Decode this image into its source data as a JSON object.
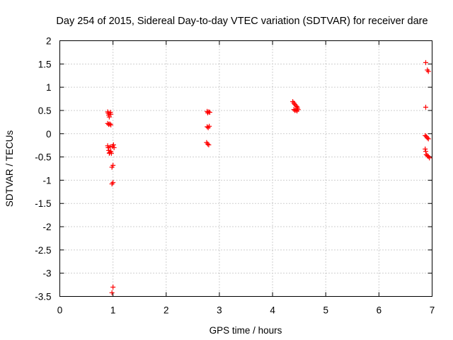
{
  "chart_data": {
    "type": "scatter",
    "title": "Day 254 of 2015, Sidereal Day-to-day VTEC variation (SDTVAR) for receiver dare",
    "xlabel": "GPS time / hours",
    "ylabel": "SDTVAR / TECUs",
    "xlim": [
      0,
      7
    ],
    "ylim": [
      -3.5,
      2
    ],
    "xticks": [
      "0",
      "1",
      "2",
      "3",
      "4",
      "5",
      "6",
      "7"
    ],
    "yticks": [
      "2",
      "1.5",
      "1",
      "0.5",
      "0",
      "-0.5",
      "-1",
      "-1.5",
      "-2",
      "-2.5",
      "-3",
      "-3.5"
    ],
    "grid": true,
    "marker": "plus",
    "color": "#ff0000",
    "series": [
      {
        "points": [
          [
            0.9,
            0.47
          ],
          [
            0.91,
            0.44
          ],
          [
            0.92,
            0.4
          ],
          [
            0.93,
            0.36
          ],
          [
            0.95,
            0.46
          ],
          [
            0.96,
            0.42
          ],
          [
            0.9,
            0.22
          ],
          [
            0.92,
            0.2
          ],
          [
            0.94,
            0.21
          ],
          [
            0.96,
            0.19
          ],
          [
            0.9,
            -0.26
          ],
          [
            0.91,
            -0.3
          ],
          [
            0.92,
            -0.36
          ],
          [
            0.93,
            -0.42
          ],
          [
            0.94,
            -0.4
          ],
          [
            0.95,
            -0.28
          ],
          [
            0.96,
            -0.38
          ],
          [
            0.97,
            -0.42
          ],
          [
            0.99,
            -0.27
          ],
          [
            1.01,
            -0.24
          ],
          [
            1.02,
            -0.3
          ],
          [
            0.98,
            -0.72
          ],
          [
            1.0,
            -0.68
          ],
          [
            0.98,
            -1.08
          ],
          [
            1.0,
            -1.05
          ],
          [
            0.98,
            -3.42
          ],
          [
            1.0,
            -3.3
          ],
          [
            2.77,
            0.48
          ],
          [
            2.78,
            0.45
          ],
          [
            2.8,
            0.47
          ],
          [
            2.82,
            0.46
          ],
          [
            2.77,
            0.15
          ],
          [
            2.79,
            0.13
          ],
          [
            2.81,
            0.16
          ],
          [
            2.76,
            -0.19
          ],
          [
            2.78,
            -0.22
          ],
          [
            2.8,
            -0.24
          ],
          [
            4.38,
            0.69
          ],
          [
            4.4,
            0.66
          ],
          [
            4.42,
            0.63
          ],
          [
            4.44,
            0.6
          ],
          [
            4.46,
            0.58
          ],
          [
            4.47,
            0.55
          ],
          [
            4.4,
            0.52
          ],
          [
            4.42,
            0.5
          ],
          [
            4.44,
            0.51
          ],
          [
            4.46,
            0.49
          ],
          [
            4.48,
            0.52
          ],
          [
            6.88,
            1.53
          ],
          [
            6.91,
            1.37
          ],
          [
            6.93,
            1.34
          ],
          [
            6.88,
            0.57
          ],
          [
            6.87,
            -0.04
          ],
          [
            6.89,
            -0.06
          ],
          [
            6.91,
            -0.09
          ],
          [
            6.93,
            -0.11
          ],
          [
            6.87,
            -0.33
          ],
          [
            6.88,
            -0.38
          ],
          [
            6.89,
            -0.45
          ],
          [
            6.91,
            -0.47
          ],
          [
            6.93,
            -0.49
          ],
          [
            6.95,
            -0.52
          ]
        ]
      }
    ]
  }
}
